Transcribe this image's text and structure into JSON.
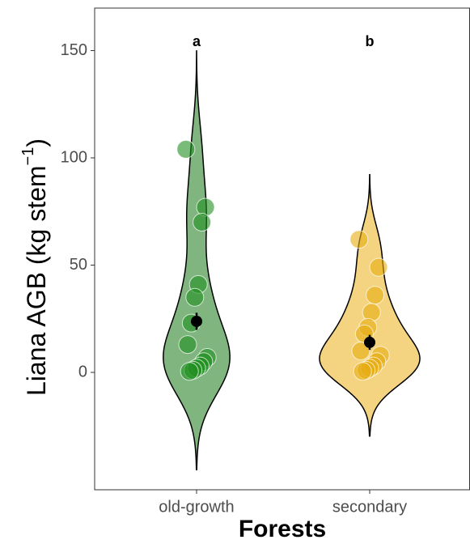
{
  "chart_data": {
    "type": "violin",
    "xlabel": "Forests",
    "ylabel": {
      "main": "Liana AGB (kg stem",
      "sup": "−1",
      "end": ")"
    },
    "categories": [
      "old-growth",
      "secondary"
    ],
    "annotations": [
      "a",
      "b"
    ],
    "values": [
      [
        104,
        77,
        70,
        41,
        35,
        23,
        13,
        7,
        5,
        3,
        2,
        1,
        0.5
      ],
      [
        62,
        49,
        36,
        28,
        21,
        18,
        10,
        8,
        5,
        3,
        2,
        1,
        0.5
      ]
    ],
    "means": [
      23.8,
      14
    ],
    "errors": [
      4,
      3.5
    ],
    "fill_colors": [
      "#6aa86a",
      "#f2cd6a"
    ],
    "point_colors": [
      "#1f8f1f",
      "#e6ac10"
    ],
    "ylim": [
      -54.7,
      169.8
    ],
    "yticks": [
      0,
      50,
      100,
      150
    ]
  }
}
